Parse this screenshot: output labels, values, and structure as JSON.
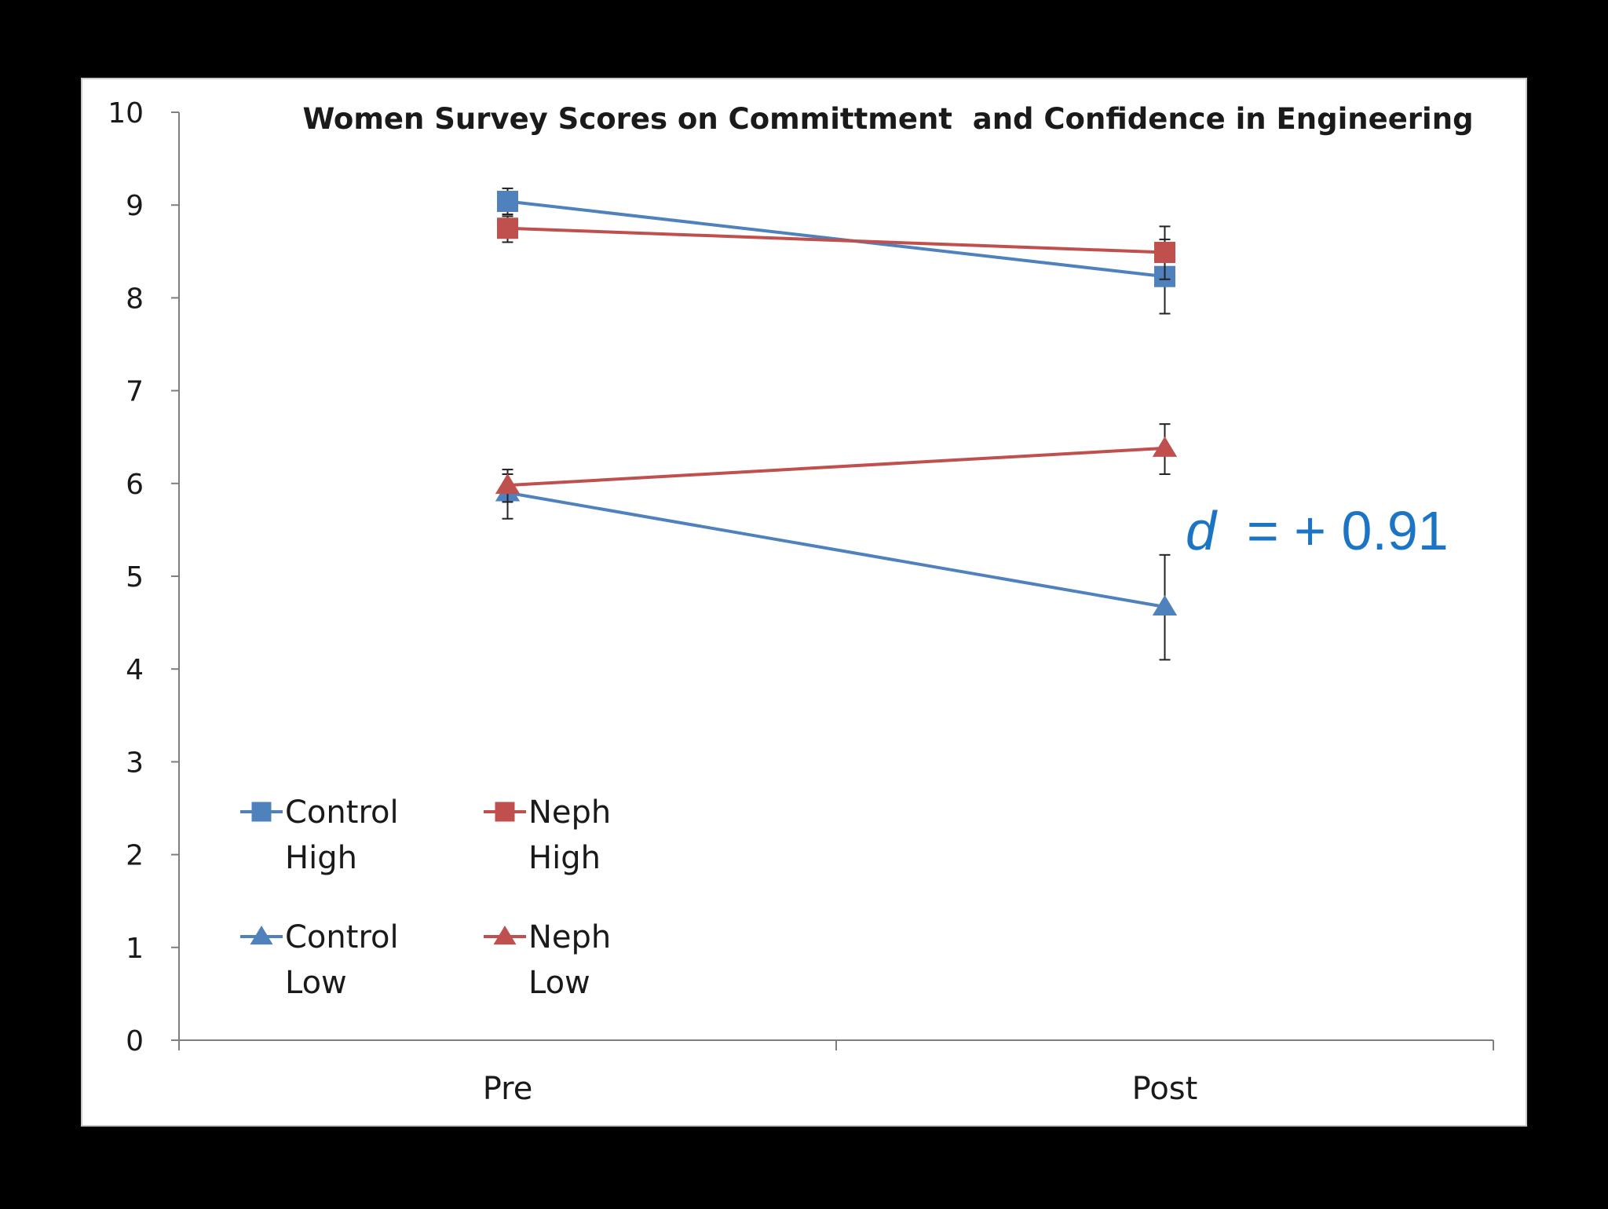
{
  "chart_data": {
    "type": "line",
    "title": "Women Survey Scores on Committment  and Confidence in Engineering",
    "categories": [
      "Pre",
      "Post"
    ],
    "ylim": [
      0,
      10
    ],
    "yticks": [
      0,
      1,
      2,
      3,
      4,
      5,
      6,
      7,
      8,
      9,
      10
    ],
    "grid": false,
    "legend_position": "bottom-left",
    "series": [
      {
        "name_lines": [
          "Control",
          "High"
        ],
        "values": [
          9.04,
          8.23
        ],
        "error": [
          [
            8.9,
            9.18
          ],
          [
            7.83,
            8.63
          ]
        ],
        "color": "#4f81bd",
        "marker": "square"
      },
      {
        "name_lines": [
          "Neph",
          "High"
        ],
        "values": [
          8.75,
          8.49
        ],
        "error": [
          [
            8.6,
            8.88
          ],
          [
            8.2,
            8.77
          ]
        ],
        "color": "#c0504d",
        "marker": "square"
      },
      {
        "name_lines": [
          "Control",
          "Low"
        ],
        "values": [
          5.9,
          4.67
        ],
        "error": [
          [
            5.62,
            6.1
          ],
          [
            4.1,
            5.23
          ]
        ],
        "color": "#4f81bd",
        "marker": "triangle"
      },
      {
        "name_lines": [
          "Neph",
          "Low"
        ],
        "values": [
          5.98,
          6.38
        ],
        "error": [
          [
            5.8,
            6.15
          ],
          [
            6.1,
            6.64
          ]
        ],
        "color": "#c0504d",
        "marker": "triangle"
      }
    ],
    "annotation": {
      "italic_part": "d",
      "text_part": " = + 0.91",
      "color": "#1b74c4"
    }
  }
}
